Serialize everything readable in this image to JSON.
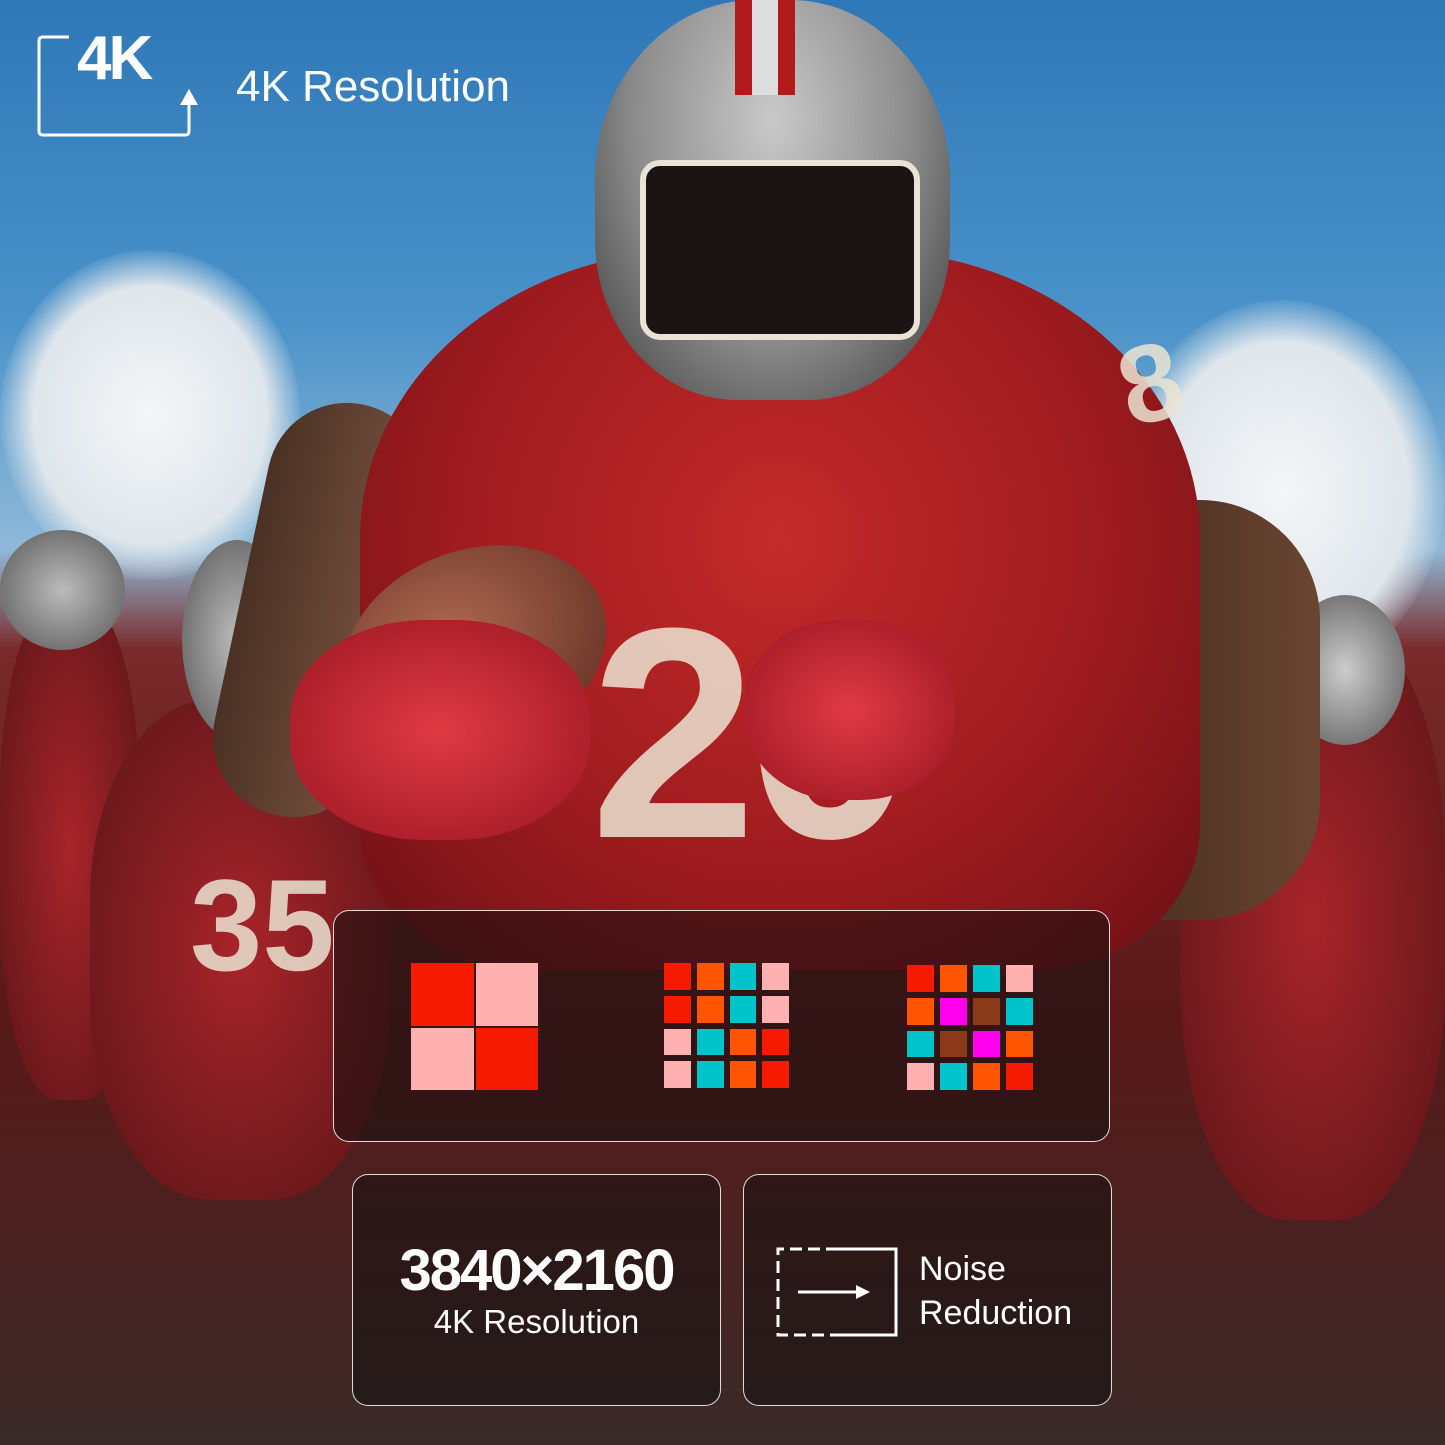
{
  "header": {
    "badge_text": "4K",
    "title": "4K Resolution"
  },
  "pixel_grids": {
    "colors": {
      "red": "#f51a00",
      "pink": "#ffb1b1",
      "orange": "#ff5500",
      "cyan": "#00c4cc",
      "magenta": "#ff00ee",
      "brown": "#8b3a1a"
    },
    "grids": [
      {
        "size": 2,
        "cells": [
          "red",
          "pink",
          "pink",
          "red"
        ]
      },
      {
        "size": 4,
        "cells": [
          "red",
          "orange",
          "cyan",
          "pink",
          "red",
          "orange",
          "cyan",
          "pink",
          "pink",
          "cyan",
          "orange",
          "red",
          "pink",
          "cyan",
          "orange",
          "red"
        ]
      },
      {
        "size": 4,
        "cells": [
          "red",
          "orange",
          "cyan",
          "pink",
          "orange",
          "magenta",
          "brown",
          "cyan",
          "cyan",
          "brown",
          "magenta",
          "orange",
          "pink",
          "cyan",
          "orange",
          "red"
        ]
      }
    ]
  },
  "resolution_card": {
    "value": "3840×2160",
    "label": "4K Resolution"
  },
  "noise_card": {
    "line1": "Noise",
    "line2": "Reduction",
    "icon": "noise-reduction-icon"
  },
  "jersey_numbers": {
    "main": "20",
    "shoulder": "8",
    "background": "35"
  }
}
